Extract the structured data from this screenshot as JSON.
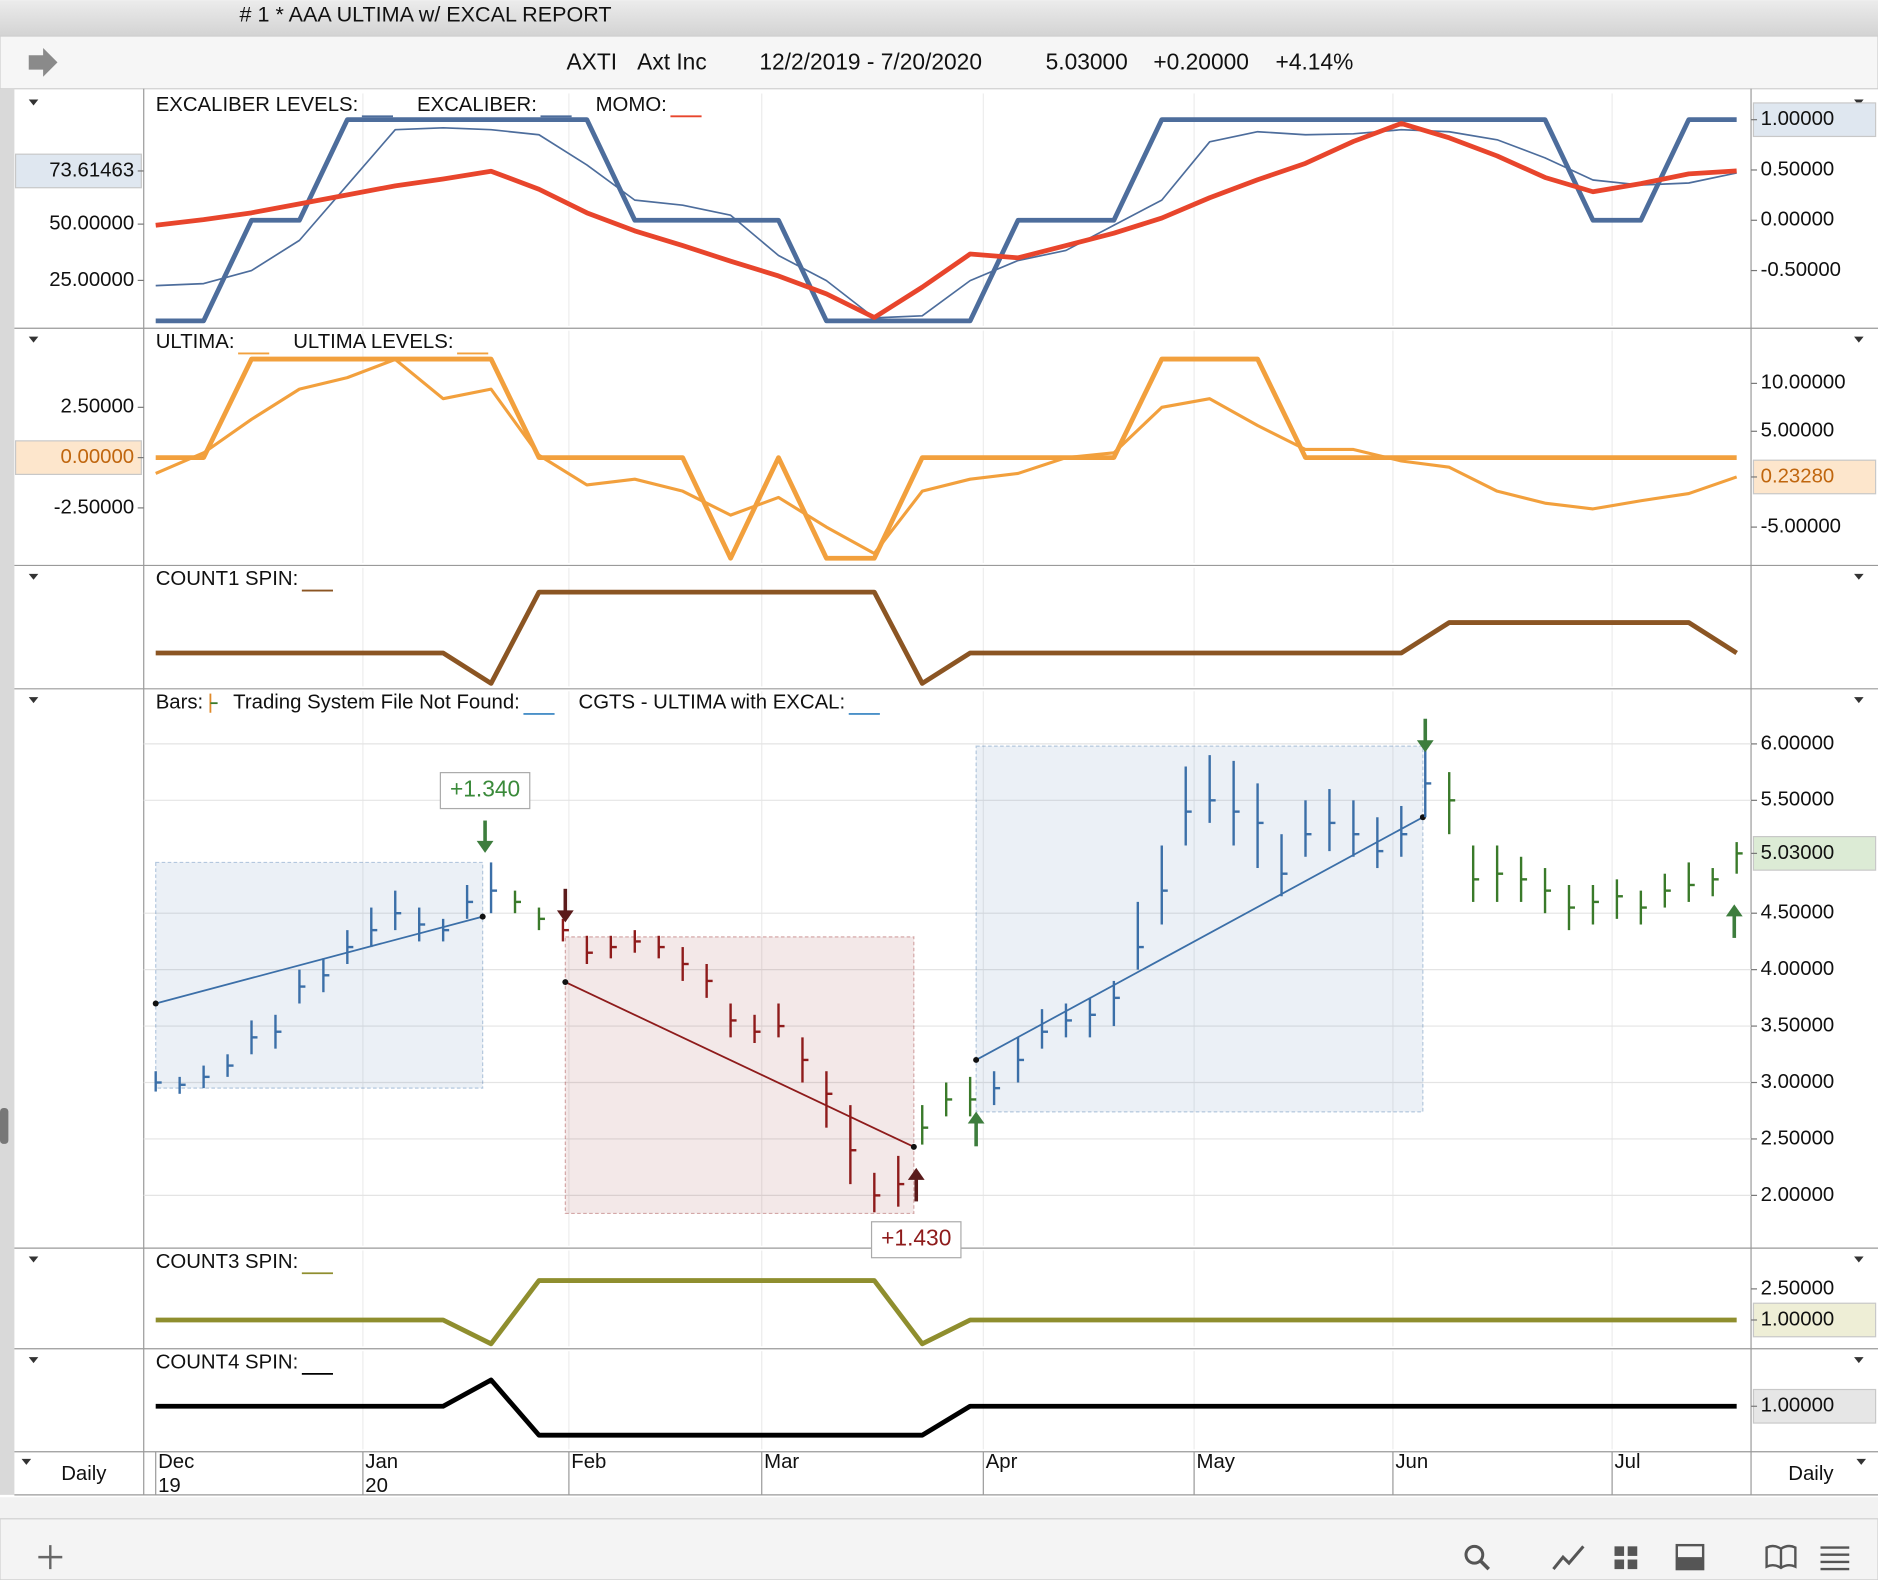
{
  "window": {
    "title": "#  1 * AAA ULTIMA w/ EXCAL REPORT"
  },
  "header": {
    "symbol": "AXTI",
    "name": "Axt Inc",
    "range": "12/2/2019 - 7/20/2020",
    "last": "5.03000",
    "change": "+0.20000",
    "change_pct": "+4.14%"
  },
  "period": "Daily",
  "time_axis": {
    "months": [
      "Dec",
      "Jan",
      "Feb",
      "Mar",
      "Apr",
      "May",
      "Jun",
      "Jul"
    ],
    "years": [
      "19",
      "20"
    ]
  },
  "chart_data": [
    {
      "type": "line",
      "ylim": [
        4.8,
        108.0
      ],
      "y2lim": [
        -1.05,
        1.26
      ],
      "yticks": [
        {
          "value": 25,
          "label": "25.00000"
        },
        {
          "value": 50,
          "label": "50.00000"
        },
        {
          "value": 73.61463,
          "label": "73.61463",
          "highlight": "#dfe7f0"
        }
      ],
      "y2ticks": [
        {
          "value": 1,
          "label": "1.00000",
          "highlight": "#dfe7f0"
        },
        {
          "value": 0.5,
          "label": "0.50000"
        },
        {
          "value": 0,
          "label": "0.00000"
        },
        {
          "value": -0.5,
          "label": "-0.50000"
        }
      ],
      "series": [
        {
          "name": "EXCALIBER LEVELS:",
          "color": "#4d6d9c",
          "axis": "y2",
          "values": [
            -1,
            -1,
            0,
            0,
            1,
            1,
            1,
            1,
            1,
            1,
            0,
            0,
            0,
            0,
            -1,
            -1,
            -1,
            -1,
            0,
            0,
            0,
            1,
            1,
            1,
            1,
            1,
            1,
            1,
            1,
            1,
            0,
            0,
            1,
            1
          ]
        },
        {
          "name": "EXCALIBER:",
          "color": "#4d6d9c",
          "axis": "y2",
          "values": [
            -0.65,
            -0.63,
            -0.5,
            -0.2,
            0.35,
            0.9,
            0.92,
            0.9,
            0.85,
            0.55,
            0.2,
            0.15,
            0.05,
            -0.35,
            -0.6,
            -0.97,
            -0.95,
            -0.6,
            -0.4,
            -0.3,
            -0.05,
            0.2,
            0.78,
            0.88,
            0.85,
            0.86,
            0.9,
            0.88,
            0.8,
            0.62,
            0.4,
            0.35,
            0.37,
            0.47
          ]
        },
        {
          "name": "MOMO:",
          "color": "#e8452c",
          "values": [
            49.5,
            52,
            55,
            59,
            63,
            67,
            70,
            73.5,
            65.5,
            55,
            47,
            40.5,
            33.5,
            27,
            19,
            8.5,
            22,
            36.7,
            35,
            40.5,
            46,
            52.7,
            61.7,
            69.7,
            77,
            86.7,
            94.7,
            88.3,
            80.3,
            70.7,
            64.4,
            68,
            72.3,
            73.61463
          ]
        }
      ]
    },
    {
      "type": "line",
      "ylim": [
        -5.24,
        6.31
      ],
      "y2lim": [
        -8.75,
        15.5
      ],
      "yticks": [
        {
          "value": 2.5,
          "label": "2.50000"
        },
        {
          "value": 0,
          "label": "0.00000",
          "highlight": "#fde6cc",
          "text_color": "#c0660e"
        },
        {
          "value": -2.5,
          "label": "-2.50000"
        }
      ],
      "y2ticks": [
        {
          "value": 10,
          "label": "10.00000"
        },
        {
          "value": 5,
          "label": "5.00000"
        },
        {
          "value": 0.2328,
          "label": "0.23280",
          "highlight": "#fde6cc",
          "text_color": "#c0660e"
        },
        {
          "value": -5,
          "label": "-5.00000"
        }
      ],
      "series": [
        {
          "name": "ULTIMA:",
          "color": "#f2a03d",
          "axis": "y2",
          "values": [
            0.6,
            2.75,
            6.25,
            9.4,
            10.6,
            12.5,
            8.4,
            9.4,
            2.5,
            -0.6,
            0,
            -1.25,
            -3.75,
            -1.9,
            -5,
            -7.75,
            -1.25,
            0,
            0.6,
            2.25,
            2.75,
            7.5,
            8.4,
            5.6,
            3.1,
            3.1,
            1.9,
            1.25,
            -1.25,
            -2.5,
            -3.1,
            -2.25,
            -1.5,
            0.2328
          ]
        },
        {
          "name": "ULTIMA LEVELS:",
          "color": "#f2a03d",
          "values": [
            0,
            0,
            4.9,
            4.9,
            4.9,
            4.9,
            4.9,
            4.9,
            0,
            0,
            0,
            0,
            -5,
            0,
            -5,
            -5,
            0,
            0,
            0,
            0,
            0,
            4.9,
            4.9,
            4.9,
            0,
            0,
            0,
            0,
            0,
            0,
            0,
            0,
            0,
            0
          ]
        }
      ]
    },
    {
      "type": "line",
      "ylim": [
        -1.1,
        2.8
      ],
      "series": [
        {
          "name": "COUNT1 SPIN:",
          "color": "#8b5523",
          "values": [
            0,
            0,
            0,
            0,
            0,
            0,
            0,
            -1,
            2,
            2,
            2,
            2,
            2,
            2,
            2,
            2,
            -1,
            0,
            0,
            0,
            0,
            0,
            0,
            0,
            0,
            0,
            0,
            1,
            1,
            1,
            1,
            1,
            1,
            0
          ]
        }
      ]
    },
    {
      "type": "ohlc",
      "grid": true,
      "y2lim": [
        1.554,
        6.467
      ],
      "y2ticks": [
        {
          "value": 6,
          "label": "6.00000"
        },
        {
          "value": 5.5,
          "label": "5.50000"
        },
        {
          "value": 5.03,
          "label": "5.03000",
          "highlight": "#dcebd5"
        },
        {
          "value": 4.5,
          "label": "4.50000"
        },
        {
          "value": 4,
          "label": "4.00000"
        },
        {
          "value": 3.5,
          "label": "3.50000"
        },
        {
          "value": 3,
          "label": "3.00000"
        },
        {
          "value": 2.5,
          "label": "2.50000"
        },
        {
          "value": 2,
          "label": "2.00000"
        }
      ],
      "bars": {
        "name": "Bars:",
        "high": [
          3.1,
          3.05,
          3.15,
          3.25,
          3.55,
          3.6,
          4.0,
          4.1,
          4.35,
          4.55,
          4.7,
          4.55,
          4.45,
          4.75,
          4.95,
          4.7,
          4.55,
          4.45,
          4.3,
          4.3,
          4.35,
          4.3,
          4.2,
          4.05,
          3.7,
          3.6,
          3.7,
          3.4,
          3.1,
          2.8,
          2.2,
          2.35,
          2.8,
          3.0,
          3.05,
          3.1,
          3.4,
          3.65,
          3.7,
          3.75,
          3.9,
          4.6,
          5.1,
          5.8,
          5.9,
          5.85,
          5.65,
          5.2,
          5.5,
          5.6,
          5.5,
          5.35,
          5.45,
          6.0,
          5.75,
          5.1,
          5.1,
          5.0,
          4.9,
          4.75,
          4.75,
          4.8,
          4.7,
          4.85,
          4.95,
          4.9,
          5.13
        ],
        "low": [
          2.92,
          2.9,
          2.95,
          3.05,
          3.25,
          3.3,
          3.7,
          3.8,
          4.05,
          4.2,
          4.35,
          4.25,
          4.25,
          4.45,
          4.5,
          4.5,
          4.35,
          4.25,
          4.05,
          4.1,
          4.15,
          4.1,
          3.9,
          3.75,
          3.4,
          3.35,
          3.4,
          3.0,
          2.6,
          2.1,
          1.85,
          1.9,
          2.45,
          2.7,
          2.7,
          2.8,
          3.0,
          3.3,
          3.4,
          3.4,
          3.5,
          4.0,
          4.4,
          5.1,
          5.3,
          5.1,
          4.9,
          4.65,
          5.0,
          5.05,
          5.0,
          4.9,
          5.0,
          5.35,
          5.2,
          4.6,
          4.6,
          4.6,
          4.5,
          4.35,
          4.4,
          4.45,
          4.4,
          4.55,
          4.6,
          4.65,
          4.85
        ],
        "close": [
          3.0,
          2.98,
          3.05,
          3.15,
          3.4,
          3.45,
          3.85,
          3.95,
          4.2,
          4.35,
          4.5,
          4.4,
          4.35,
          4.6,
          4.7,
          4.6,
          4.45,
          4.35,
          4.15,
          4.2,
          4.25,
          4.2,
          4.05,
          3.9,
          3.55,
          3.45,
          3.5,
          3.2,
          2.9,
          2.4,
          2.0,
          2.1,
          2.6,
          2.85,
          2.85,
          2.95,
          3.2,
          3.45,
          3.55,
          3.6,
          3.75,
          4.2,
          4.7,
          5.4,
          5.5,
          5.4,
          5.3,
          4.85,
          5.2,
          5.3,
          5.2,
          5.05,
          5.2,
          5.65,
          5.5,
          4.8,
          4.85,
          4.8,
          4.7,
          4.55,
          4.6,
          4.65,
          4.55,
          4.7,
          4.75,
          4.8,
          5.03
        ],
        "colors": [
          "#3b6fa8",
          "#3b6fa8",
          "#3b6fa8",
          "#3b6fa8",
          "#3b6fa8",
          "#3b6fa8",
          "#3b6fa8",
          "#3b6fa8",
          "#3b6fa8",
          "#3b6fa8",
          "#3b6fa8",
          "#3b6fa8",
          "#3b6fa8",
          "#3b6fa8",
          "#3b6fa8",
          "#3a7a2a",
          "#3a7a2a",
          "#8e1b1b",
          "#8e1b1b",
          "#8e1b1b",
          "#8e1b1b",
          "#8e1b1b",
          "#8e1b1b",
          "#8e1b1b",
          "#8e1b1b",
          "#8e1b1b",
          "#8e1b1b",
          "#8e1b1b",
          "#8e1b1b",
          "#8e1b1b",
          "#8e1b1b",
          "#8e1b1b",
          "#3a7a2a",
          "#3a7a2a",
          "#3a7a2a",
          "#3b6fa8",
          "#3b6fa8",
          "#3b6fa8",
          "#3b6fa8",
          "#3b6fa8",
          "#3b6fa8",
          "#3b6fa8",
          "#3b6fa8",
          "#3b6fa8",
          "#3b6fa8",
          "#3b6fa8",
          "#3b6fa8",
          "#3b6fa8",
          "#3b6fa8",
          "#3b6fa8",
          "#3b6fa8",
          "#3b6fa8",
          "#3b6fa8",
          "#3b6fa8",
          "#3a7a2a",
          "#3a7a2a",
          "#3a7a2a",
          "#3a7a2a",
          "#3a7a2a",
          "#3a7a2a",
          "#3a7a2a",
          "#3a7a2a",
          "#3a7a2a",
          "#3a7a2a",
          "#3a7a2a",
          "#3a7a2a",
          "#3a7a2a"
        ]
      },
      "series": [
        {
          "name": "Trading System File Not Found:",
          "color": "#4a90c8"
        },
        {
          "name": "CGTS - ULTIMA with EXCAL:",
          "color": "#4a90c8"
        }
      ],
      "trades": [
        {
          "color": "#3b6fa8",
          "box": [
            2.95,
            4.95
          ],
          "line": [
            3.7,
            4.47
          ]
        },
        {
          "color": "#8e1b1b",
          "box": [
            1.84,
            4.29
          ],
          "line": [
            3.89,
            2.43
          ]
        },
        {
          "color": "#3b6fa8",
          "box": [
            2.74,
            5.98
          ],
          "line": [
            3.2,
            5.35
          ]
        }
      ],
      "annotations": [
        {
          "text": "+1.340",
          "color": "#3a8a3a"
        },
        {
          "text": "+1.430",
          "color": "#8e1b1b"
        }
      ]
    },
    {
      "type": "line",
      "y2lim": [
        -0.27,
        4.35
      ],
      "y2ticks": [
        {
          "value": 2.5,
          "label": "2.50000"
        },
        {
          "value": 1,
          "label": "1.00000",
          "highlight": "#eeeed6"
        }
      ],
      "series": [
        {
          "name": "COUNT3 SPIN:",
          "color": "#8f8e2e",
          "axis": "y2",
          "values": [
            1,
            1,
            1,
            1,
            1,
            1,
            1,
            -0.15,
            2.9,
            2.9,
            2.9,
            2.9,
            2.9,
            2.9,
            2.9,
            2.9,
            -0.15,
            1,
            1,
            1,
            1,
            1,
            1,
            1,
            1,
            1,
            1,
            1,
            1,
            1,
            1,
            1,
            1,
            1
          ]
        }
      ]
    },
    {
      "type": "line",
      "y2lim": [
        0.18,
        2.05
      ],
      "y2ticks": [
        {
          "value": 1,
          "label": "1.00000",
          "highlight": "#e6e6e6"
        }
      ],
      "series": [
        {
          "name": "COUNT4 SPIN:",
          "color": "#000000",
          "axis": "y2",
          "values": [
            1,
            1,
            1,
            1,
            1,
            1,
            1,
            1.5,
            0.45,
            0.45,
            0.45,
            0.45,
            0.45,
            0.45,
            0.45,
            0.45,
            0.45,
            1,
            1,
            1,
            1,
            1,
            1,
            1,
            1,
            1,
            1,
            1,
            1,
            1,
            1,
            1,
            1,
            1
          ]
        }
      ]
    }
  ]
}
